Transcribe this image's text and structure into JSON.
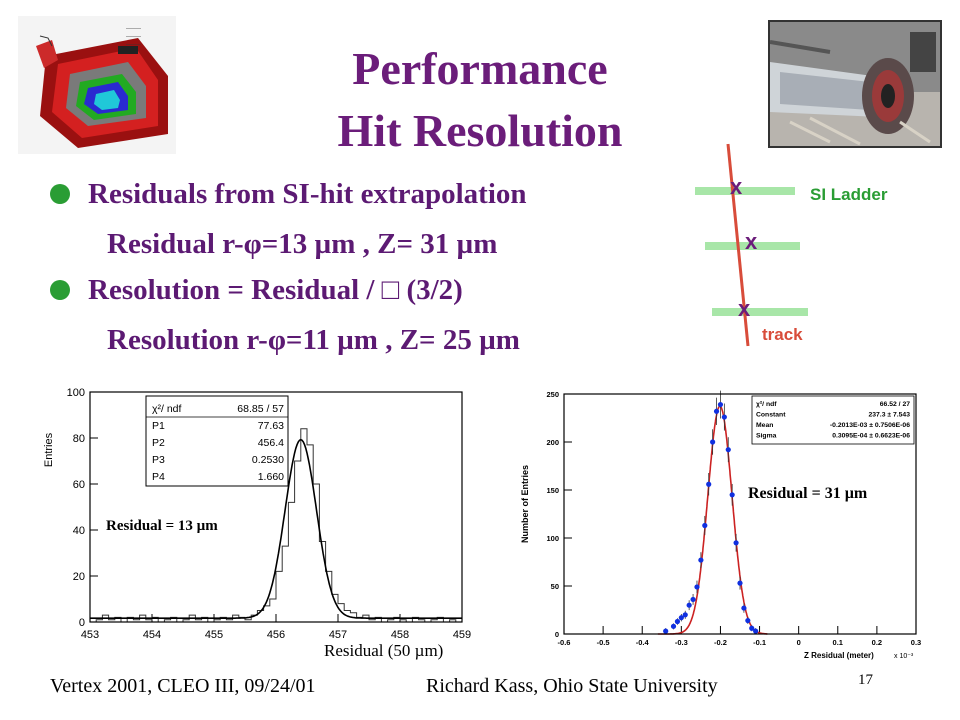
{
  "title": {
    "line1": "Performance",
    "line2": "Hit Resolution"
  },
  "bullets": [
    {
      "main": "Residuals from SI-hit extrapolation",
      "sub": "Residual r-φ=13 µm , Z= 31 µm"
    },
    {
      "main": "Resolution = Residual / □ (3/2)",
      "sub": "Resolution r-φ=11 µm , Z= 25 µm"
    }
  ],
  "diagram": {
    "ladder_label": "SI Ladder",
    "track_label": "track",
    "hit_marks": [
      "x",
      "x",
      "x"
    ]
  },
  "colors": {
    "title": "#6b1d7a",
    "text": "#5c1a73",
    "bullet": "#2a9d34",
    "ladder": "#a8e6a8",
    "track": "#d84c3a",
    "fit_red": "#cc2222",
    "points_blue": "#1030e0"
  },
  "chart_data": [
    {
      "type": "line",
      "ylabel": "Entries",
      "xlabel": "Residual (50 µm)",
      "xlim": [
        453,
        459
      ],
      "ylim": [
        0,
        100
      ],
      "xticks": [
        "453",
        "454",
        "455",
        "456",
        "457",
        "458",
        "459"
      ],
      "yticks": [
        "0",
        "20",
        "40",
        "60",
        "80",
        "100"
      ],
      "stats": [
        {
          "name": "χ²/ ndf",
          "value": "68.85   /    57"
        },
        {
          "name": "P1",
          "value": "77.63"
        },
        {
          "name": "P2",
          "value": "456.4"
        },
        {
          "name": "P3",
          "value": "0.2530"
        },
        {
          "name": "P4",
          "value": "1.660"
        }
      ],
      "annotation": "Residual = 13 µm",
      "fit": {
        "amplitude": 77.63,
        "mean": 456.4,
        "sigma": 0.253,
        "offset": 1.66
      },
      "histogram": {
        "bin_width": 0.1,
        "bins": [
          [
            453,
            0
          ],
          [
            453.1,
            1
          ],
          [
            453.2,
            3
          ],
          [
            453.3,
            1
          ],
          [
            453.4,
            2
          ],
          [
            453.5,
            0
          ],
          [
            453.6,
            2
          ],
          [
            453.7,
            1
          ],
          [
            453.8,
            3
          ],
          [
            453.9,
            1
          ],
          [
            454,
            2
          ],
          [
            454.1,
            0
          ],
          [
            454.2,
            1
          ],
          [
            454.3,
            2
          ],
          [
            454.4,
            0
          ],
          [
            454.5,
            1
          ],
          [
            454.6,
            3
          ],
          [
            454.7,
            1
          ],
          [
            454.8,
            2
          ],
          [
            454.9,
            0
          ],
          [
            455,
            1
          ],
          [
            455.1,
            2
          ],
          [
            455.2,
            1
          ],
          [
            455.3,
            3
          ],
          [
            455.4,
            2
          ],
          [
            455.5,
            1
          ],
          [
            455.6,
            3
          ],
          [
            455.7,
            5
          ],
          [
            455.8,
            7
          ],
          [
            455.9,
            10
          ],
          [
            456,
            22
          ],
          [
            456.1,
            33
          ],
          [
            456.2,
            52
          ],
          [
            456.3,
            70
          ],
          [
            456.4,
            84
          ],
          [
            456.5,
            77
          ],
          [
            456.6,
            60
          ],
          [
            456.7,
            35
          ],
          [
            456.8,
            22
          ],
          [
            456.9,
            12
          ],
          [
            457,
            8
          ],
          [
            457.1,
            5
          ],
          [
            457.2,
            4
          ],
          [
            457.3,
            2
          ],
          [
            457.4,
            3
          ],
          [
            457.5,
            1
          ],
          [
            457.6,
            2
          ],
          [
            457.7,
            0
          ],
          [
            457.8,
            1
          ],
          [
            457.9,
            2
          ],
          [
            458,
            1
          ],
          [
            458.1,
            0
          ],
          [
            458.2,
            2
          ],
          [
            458.3,
            1
          ],
          [
            458.4,
            0
          ],
          [
            458.5,
            1
          ],
          [
            458.6,
            2
          ],
          [
            458.7,
            0
          ],
          [
            458.8,
            1
          ],
          [
            458.9,
            0
          ]
        ]
      }
    },
    {
      "type": "scatter",
      "ylabel": "Number of Entries",
      "xlabel": "Z Residual (meter)",
      "x_scale_note": "x 10⁻³",
      "xlim": [
        -0.6,
        0.3
      ],
      "ylim": [
        0,
        250
      ],
      "xticks": [
        "-0.6",
        "-0.5",
        "-0.4",
        "-0.3",
        "-0.2",
        "-0.1",
        "0",
        "0.1",
        "0.2",
        "0.3"
      ],
      "yticks": [
        "0",
        "50",
        "100",
        "150",
        "200",
        "250"
      ],
      "stats": [
        {
          "name": "χ²/ ndf",
          "value": "66.52  /  27"
        },
        {
          "name": "Constant",
          "value": "237.3  ±      7.543"
        },
        {
          "name": "Mean",
          "value": "-0.2013E-03 ±  0.7506E-06"
        },
        {
          "name": "Sigma",
          "value": "0.3095E-04 ±  0.6623E-06"
        }
      ],
      "annotation": "Residual = 31 µm",
      "fit": {
        "constant": 237.3,
        "mean": -0.2013,
        "sigma": 0.03095
      },
      "points": [
        {
          "x": -0.34,
          "y": 3
        },
        {
          "x": -0.32,
          "y": 8
        },
        {
          "x": -0.31,
          "y": 13
        },
        {
          "x": -0.3,
          "y": 17
        },
        {
          "x": -0.29,
          "y": 20
        },
        {
          "x": -0.28,
          "y": 30
        },
        {
          "x": -0.27,
          "y": 36
        },
        {
          "x": -0.26,
          "y": 49
        },
        {
          "x": -0.25,
          "y": 77
        },
        {
          "x": -0.24,
          "y": 113
        },
        {
          "x": -0.23,
          "y": 156
        },
        {
          "x": -0.22,
          "y": 200
        },
        {
          "x": -0.21,
          "y": 232
        },
        {
          "x": -0.2,
          "y": 239
        },
        {
          "x": -0.19,
          "y": 226
        },
        {
          "x": -0.18,
          "y": 192
        },
        {
          "x": -0.17,
          "y": 145
        },
        {
          "x": -0.16,
          "y": 95
        },
        {
          "x": -0.15,
          "y": 53
        },
        {
          "x": -0.14,
          "y": 27
        },
        {
          "x": -0.13,
          "y": 14
        },
        {
          "x": -0.12,
          "y": 6
        },
        {
          "x": -0.11,
          "y": 3
        }
      ]
    }
  ],
  "footer": {
    "left": "Vertex 2001, CLEO III,  09/24/01",
    "center": "Richard Kass, Ohio State University",
    "page": "17"
  }
}
